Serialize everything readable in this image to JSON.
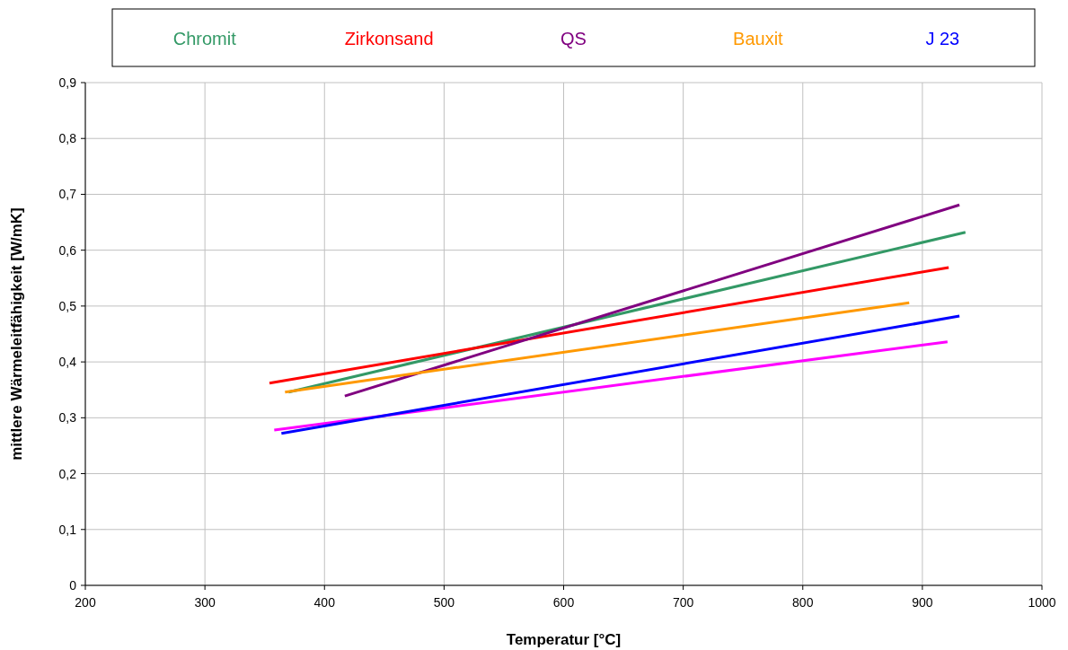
{
  "chart_data": {
    "type": "line",
    "xlabel": "Temperatur [°C]",
    "ylabel": "mittlere Wärmeleitfähigkeit [W/mK]",
    "xlim": [
      200,
      1000
    ],
    "xticks": [
      200,
      300,
      400,
      500,
      600,
      700,
      800,
      900,
      1000
    ],
    "ylim": [
      0,
      0.9
    ],
    "yticks": [
      0,
      {
        "value": 0.1,
        "label": "0,1"
      },
      {
        "value": 0.2,
        "label": "0,2"
      },
      {
        "value": 0.3,
        "label": "0,3"
      },
      {
        "value": 0.4,
        "label": "0,4"
      },
      {
        "value": 0.5,
        "label": "0,5"
      },
      {
        "value": 0.6,
        "label": "0,6"
      },
      {
        "value": 0.7,
        "label": "0,7"
      },
      {
        "value": 0.8,
        "label": "0,8"
      },
      {
        "value": 0.9,
        "label": "0,9"
      }
    ],
    "grid": true,
    "legend": "top",
    "marker": "none",
    "line_style": "solid",
    "series": [
      {
        "color": "#ff00ff",
        "x": [
          358,
          921
        ],
        "values": [
          0.278,
          0.436
        ]
      },
      {
        "name": "Chromit",
        "color": "#339966",
        "x": [
          370,
          936
        ],
        "values": [
          0.346,
          0.632
        ]
      },
      {
        "name": "Zirkonsand",
        "color": "#ff0000",
        "x": [
          354,
          922
        ],
        "values": [
          0.362,
          0.569
        ]
      },
      {
        "name": "QS",
        "color": "#800080",
        "x": [
          417,
          931
        ],
        "values": [
          0.339,
          0.681
        ]
      },
      {
        "name": "Bauxit",
        "color": "#ff9900",
        "x": [
          367,
          889
        ],
        "values": [
          0.346,
          0.506
        ]
      },
      {
        "name": "J 23",
        "color": "#0000ff",
        "x": [
          364,
          931
        ],
        "values": [
          0.272,
          0.482
        ]
      }
    ]
  }
}
